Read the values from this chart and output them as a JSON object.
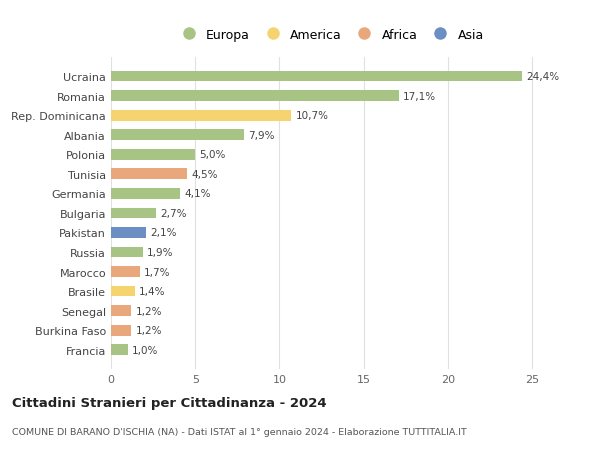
{
  "countries": [
    "Francia",
    "Burkina Faso",
    "Senegal",
    "Brasile",
    "Marocco",
    "Russia",
    "Pakistan",
    "Bulgaria",
    "Germania",
    "Tunisia",
    "Polonia",
    "Albania",
    "Rep. Dominicana",
    "Romania",
    "Ucraina"
  ],
  "values": [
    1.0,
    1.2,
    1.2,
    1.4,
    1.7,
    1.9,
    2.1,
    2.7,
    4.1,
    4.5,
    5.0,
    7.9,
    10.7,
    17.1,
    24.4
  ],
  "labels": [
    "1,0%",
    "1,2%",
    "1,2%",
    "1,4%",
    "1,7%",
    "1,9%",
    "2,1%",
    "2,7%",
    "4,1%",
    "4,5%",
    "5,0%",
    "7,9%",
    "10,7%",
    "17,1%",
    "24,4%"
  ],
  "continents": [
    "Europa",
    "Africa",
    "Africa",
    "America",
    "Africa",
    "Europa",
    "Asia",
    "Europa",
    "Europa",
    "Africa",
    "Europa",
    "Europa",
    "America",
    "Europa",
    "Europa"
  ],
  "colors": {
    "Europa": "#a8c484",
    "America": "#f5d470",
    "Africa": "#e8a87c",
    "Asia": "#6b8fc2"
  },
  "title_bold": "Cittadini Stranieri per Cittadinanza - 2024",
  "subtitle": "COMUNE DI BARANO D'ISCHIA (NA) - Dati ISTAT al 1° gennaio 2024 - Elaborazione TUTTITALIA.IT",
  "xlim": [
    0,
    26
  ],
  "xticks": [
    0,
    5,
    10,
    15,
    20,
    25
  ],
  "background_color": "#ffffff",
  "bar_height": 0.55,
  "grid_color": "#e0e0e0",
  "legend_order": [
    "Europa",
    "America",
    "Africa",
    "Asia"
  ]
}
